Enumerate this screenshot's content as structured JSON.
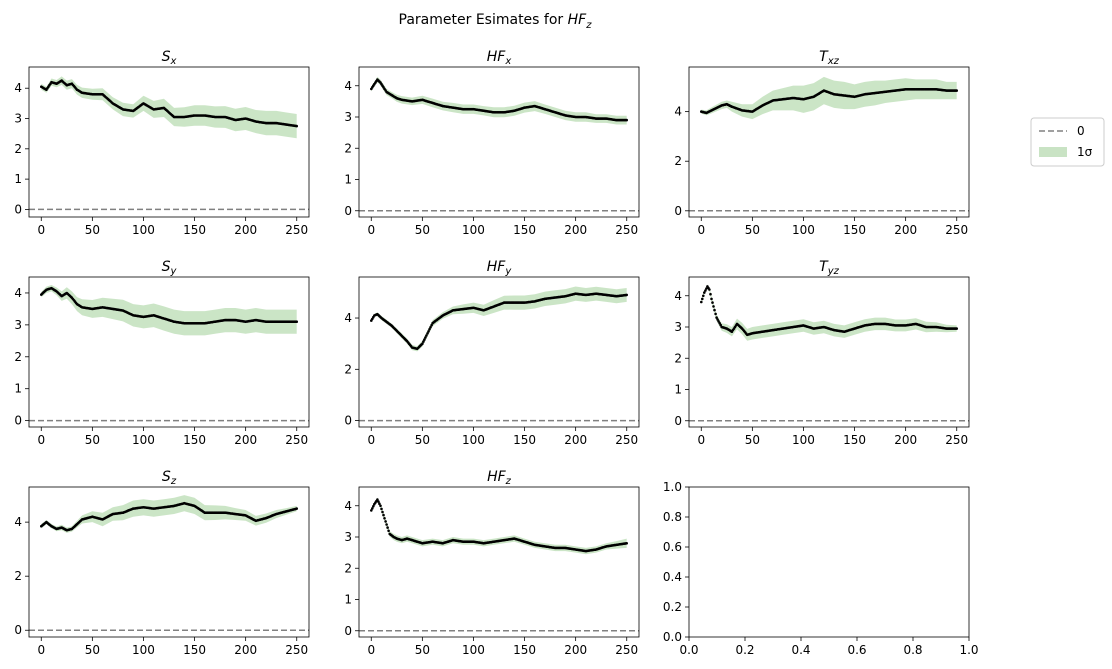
{
  "figure": {
    "title_text": "Parameter Esimates for ",
    "title_math_base": "HF",
    "title_math_sub": "z"
  },
  "legend": {
    "entries": [
      {
        "label": "0",
        "style": "dashed-line",
        "color": "#808080"
      },
      {
        "label": "1σ",
        "style": "band",
        "color": "#c9e3c4"
      }
    ]
  },
  "colors": {
    "estimate": "#000000",
    "band": "#a9d4a0",
    "zero_line": "#808080"
  },
  "chart_data": [
    {
      "type": "line",
      "title_base": "S",
      "title_sub": "x",
      "x": [
        0,
        5,
        10,
        15,
        20,
        25,
        30,
        35,
        40,
        50,
        60,
        70,
        80,
        90,
        100,
        110,
        120,
        130,
        140,
        150,
        160,
        170,
        180,
        190,
        200,
        210,
        220,
        230,
        240,
        250
      ],
      "y": [
        4.05,
        3.95,
        4.2,
        4.15,
        4.25,
        4.1,
        4.15,
        3.95,
        3.85,
        3.8,
        3.8,
        3.5,
        3.3,
        3.25,
        3.5,
        3.3,
        3.35,
        3.05,
        3.05,
        3.1,
        3.1,
        3.05,
        3.05,
        2.95,
        3.0,
        2.9,
        2.85,
        2.85,
        2.8,
        2.75
      ],
      "sigma": [
        0.1,
        0.1,
        0.12,
        0.12,
        0.14,
        0.15,
        0.15,
        0.16,
        0.17,
        0.18,
        0.2,
        0.2,
        0.22,
        0.22,
        0.25,
        0.28,
        0.3,
        0.3,
        0.32,
        0.34,
        0.34,
        0.35,
        0.36,
        0.37,
        0.38,
        0.38,
        0.4,
        0.4,
        0.4,
        0.4
      ],
      "xlim": [
        -12,
        262
      ],
      "ylim": [
        -0.25,
        4.7
      ],
      "xticks": [
        0,
        50,
        100,
        150,
        200,
        250
      ],
      "yticks": [
        0,
        1,
        2,
        3,
        4
      ]
    },
    {
      "type": "line",
      "title_base": "HF",
      "title_sub": "x",
      "x": [
        0,
        3,
        6,
        9,
        12,
        15,
        20,
        25,
        30,
        40,
        50,
        60,
        70,
        80,
        90,
        100,
        110,
        120,
        130,
        140,
        150,
        160,
        170,
        180,
        190,
        200,
        210,
        220,
        230,
        240,
        250
      ],
      "y": [
        3.9,
        4.05,
        4.2,
        4.1,
        3.95,
        3.8,
        3.7,
        3.6,
        3.55,
        3.5,
        3.55,
        3.45,
        3.35,
        3.3,
        3.25,
        3.25,
        3.2,
        3.15,
        3.15,
        3.2,
        3.3,
        3.35,
        3.25,
        3.15,
        3.05,
        3.0,
        3.0,
        2.95,
        2.95,
        2.9,
        2.9
      ],
      "sigma": [
        0.08,
        0.08,
        0.09,
        0.09,
        0.1,
        0.1,
        0.1,
        0.11,
        0.12,
        0.12,
        0.13,
        0.14,
        0.14,
        0.15,
        0.15,
        0.15,
        0.15,
        0.16,
        0.16,
        0.16,
        0.16,
        0.16,
        0.15,
        0.15,
        0.15,
        0.15,
        0.15,
        0.14,
        0.14,
        0.14,
        0.14
      ],
      "xlim": [
        -12,
        262
      ],
      "ylim": [
        -0.2,
        4.6
      ],
      "xticks": [
        0,
        50,
        100,
        150,
        200,
        250
      ],
      "yticks": [
        0,
        1,
        2,
        3,
        4
      ]
    },
    {
      "type": "line",
      "title_base": "T",
      "title_sub": "xz",
      "x": [
        0,
        5,
        10,
        20,
        25,
        30,
        40,
        50,
        60,
        70,
        80,
        90,
        100,
        110,
        120,
        130,
        140,
        150,
        160,
        170,
        180,
        190,
        200,
        210,
        220,
        230,
        240,
        250
      ],
      "y": [
        4.0,
        3.95,
        4.05,
        4.25,
        4.3,
        4.2,
        4.05,
        4.0,
        4.25,
        4.45,
        4.5,
        4.55,
        4.5,
        4.6,
        4.85,
        4.7,
        4.65,
        4.6,
        4.7,
        4.75,
        4.8,
        4.85,
        4.9,
        4.9,
        4.9,
        4.9,
        4.85,
        4.85
      ],
      "sigma": [
        0.08,
        0.1,
        0.12,
        0.15,
        0.15,
        0.2,
        0.25,
        0.3,
        0.35,
        0.4,
        0.45,
        0.5,
        0.55,
        0.55,
        0.55,
        0.55,
        0.55,
        0.5,
        0.5,
        0.5,
        0.45,
        0.45,
        0.45,
        0.4,
        0.4,
        0.4,
        0.35,
        0.35
      ],
      "xlim": [
        -12,
        262
      ],
      "ylim": [
        -0.25,
        5.8
      ],
      "xticks": [
        0,
        50,
        100,
        150,
        200,
        250
      ],
      "yticks": [
        0,
        2,
        4
      ]
    },
    {
      "type": "line",
      "title_base": "S",
      "title_sub": "y",
      "x": [
        0,
        5,
        10,
        15,
        20,
        25,
        30,
        35,
        40,
        50,
        60,
        70,
        80,
        90,
        100,
        110,
        120,
        130,
        140,
        150,
        160,
        170,
        180,
        190,
        200,
        210,
        220,
        230,
        240,
        250
      ],
      "y": [
        3.95,
        4.1,
        4.15,
        4.05,
        3.9,
        4.0,
        3.85,
        3.65,
        3.55,
        3.5,
        3.55,
        3.5,
        3.45,
        3.3,
        3.25,
        3.3,
        3.2,
        3.1,
        3.05,
        3.05,
        3.05,
        3.1,
        3.15,
        3.15,
        3.1,
        3.15,
        3.1,
        3.1,
        3.1,
        3.1
      ],
      "sigma": [
        0.08,
        0.1,
        0.1,
        0.12,
        0.15,
        0.18,
        0.2,
        0.22,
        0.25,
        0.28,
        0.3,
        0.32,
        0.34,
        0.35,
        0.36,
        0.37,
        0.38,
        0.38,
        0.38,
        0.38,
        0.38,
        0.38,
        0.38,
        0.38,
        0.38,
        0.38,
        0.38,
        0.38,
        0.38,
        0.38
      ],
      "xlim": [
        -12,
        262
      ],
      "ylim": [
        -0.2,
        4.5
      ],
      "xticks": [
        0,
        50,
        100,
        150,
        200,
        250
      ],
      "yticks": [
        0,
        1,
        2,
        3,
        4
      ]
    },
    {
      "type": "line",
      "title_base": "HF",
      "title_sub": "y",
      "x": [
        0,
        3,
        6,
        10,
        15,
        20,
        25,
        30,
        35,
        40,
        45,
        50,
        55,
        60,
        70,
        80,
        90,
        100,
        110,
        120,
        130,
        140,
        150,
        160,
        170,
        180,
        190,
        200,
        210,
        220,
        230,
        240,
        250
      ],
      "y": [
        3.9,
        4.1,
        4.15,
        4.0,
        3.85,
        3.7,
        3.5,
        3.3,
        3.1,
        2.85,
        2.8,
        3.0,
        3.4,
        3.8,
        4.1,
        4.3,
        4.35,
        4.4,
        4.3,
        4.45,
        4.6,
        4.6,
        4.6,
        4.65,
        4.75,
        4.8,
        4.85,
        4.95,
        4.9,
        4.95,
        4.9,
        4.85,
        4.9
      ],
      "sigma": [
        0.05,
        0.06,
        0.07,
        0.08,
        0.08,
        0.08,
        0.09,
        0.1,
        0.1,
        0.1,
        0.1,
        0.11,
        0.12,
        0.12,
        0.13,
        0.15,
        0.18,
        0.2,
        0.22,
        0.25,
        0.27,
        0.28,
        0.28,
        0.28,
        0.28,
        0.28,
        0.28,
        0.28,
        0.27,
        0.27,
        0.27,
        0.27,
        0.27
      ],
      "xlim": [
        -12,
        262
      ],
      "ylim": [
        -0.25,
        5.6
      ],
      "xticks": [
        0,
        50,
        100,
        150,
        200,
        250
      ],
      "yticks": [
        0,
        2,
        4
      ]
    },
    {
      "type": "line",
      "title_base": "T",
      "title_sub": "yz",
      "x": [
        0,
        3,
        6,
        8,
        10,
        15,
        20,
        25,
        30,
        35,
        40,
        45,
        50,
        60,
        70,
        80,
        90,
        100,
        110,
        120,
        130,
        140,
        150,
        160,
        170,
        180,
        190,
        200,
        210,
        220,
        230,
        240,
        250
      ],
      "y": [
        3.8,
        4.1,
        4.3,
        4.2,
        3.9,
        3.3,
        3.0,
        2.95,
        2.85,
        3.1,
        2.95,
        2.75,
        2.8,
        2.85,
        2.9,
        2.95,
        3.0,
        3.05,
        2.95,
        3.0,
        2.9,
        2.85,
        2.95,
        3.05,
        3.1,
        3.1,
        3.05,
        3.05,
        3.1,
        3.0,
        3.0,
        2.95,
        2.95
      ],
      "sigma": [
        0.05,
        0.06,
        0.06,
        0.07,
        0.08,
        0.1,
        0.12,
        0.14,
        0.15,
        0.17,
        0.18,
        0.19,
        0.2,
        0.2,
        0.2,
        0.2,
        0.2,
        0.2,
        0.2,
        0.2,
        0.2,
        0.2,
        0.2,
        0.2,
        0.2,
        0.2,
        0.19,
        0.19,
        0.18,
        0.17,
        0.15,
        0.12,
        0.1
      ],
      "xlim": [
        -12,
        262
      ],
      "ylim": [
        -0.2,
        4.6
      ],
      "xticks": [
        0,
        50,
        100,
        150,
        200,
        250
      ],
      "yticks": [
        0,
        1,
        2,
        3,
        4
      ]
    },
    {
      "type": "line",
      "title_base": "S",
      "title_sub": "z",
      "x": [
        0,
        5,
        10,
        15,
        20,
        25,
        30,
        40,
        50,
        60,
        70,
        80,
        90,
        100,
        110,
        120,
        130,
        140,
        150,
        160,
        170,
        180,
        190,
        200,
        210,
        220,
        230,
        240,
        250
      ],
      "y": [
        3.85,
        4.0,
        3.85,
        3.75,
        3.8,
        3.7,
        3.75,
        4.1,
        4.2,
        4.1,
        4.3,
        4.35,
        4.5,
        4.55,
        4.5,
        4.55,
        4.6,
        4.7,
        4.6,
        4.35,
        4.35,
        4.35,
        4.3,
        4.25,
        4.05,
        4.15,
        4.3,
        4.4,
        4.5
      ],
      "sigma": [
        0.08,
        0.08,
        0.08,
        0.09,
        0.1,
        0.1,
        0.1,
        0.15,
        0.2,
        0.25,
        0.25,
        0.28,
        0.3,
        0.3,
        0.3,
        0.3,
        0.3,
        0.3,
        0.3,
        0.28,
        0.27,
        0.25,
        0.22,
        0.2,
        0.18,
        0.17,
        0.15,
        0.12,
        0.1
      ],
      "xlim": [
        -12,
        262
      ],
      "ylim": [
        -0.25,
        5.3
      ],
      "xticks": [
        0,
        50,
        100,
        150,
        200,
        250
      ],
      "yticks": [
        0,
        2,
        4
      ]
    },
    {
      "type": "line",
      "title_base": "HF",
      "title_sub": "z",
      "x": [
        0,
        3,
        6,
        9,
        12,
        15,
        18,
        22,
        25,
        30,
        35,
        40,
        50,
        60,
        70,
        80,
        90,
        100,
        110,
        120,
        130,
        140,
        150,
        160,
        170,
        180,
        190,
        200,
        210,
        220,
        230,
        240,
        250
      ],
      "y": [
        3.85,
        4.05,
        4.2,
        4.0,
        3.7,
        3.4,
        3.1,
        3.0,
        2.95,
        2.9,
        2.95,
        2.9,
        2.8,
        2.85,
        2.8,
        2.9,
        2.85,
        2.85,
        2.8,
        2.85,
        2.9,
        2.95,
        2.85,
        2.75,
        2.7,
        2.65,
        2.65,
        2.6,
        2.55,
        2.6,
        2.7,
        2.75,
        2.8
      ],
      "sigma": [
        0.05,
        0.05,
        0.06,
        0.07,
        0.08,
        0.08,
        0.09,
        0.1,
        0.1,
        0.1,
        0.1,
        0.1,
        0.1,
        0.1,
        0.1,
        0.1,
        0.1,
        0.1,
        0.1,
        0.1,
        0.1,
        0.1,
        0.1,
        0.1,
        0.1,
        0.1,
        0.1,
        0.1,
        0.1,
        0.1,
        0.1,
        0.12,
        0.15
      ],
      "xlim": [
        -12,
        262
      ],
      "ylim": [
        -0.2,
        4.6
      ],
      "xticks": [
        0,
        50,
        100,
        150,
        200,
        250
      ],
      "yticks": [
        0,
        1,
        2,
        3,
        4
      ]
    },
    {
      "type": "line",
      "title_base": "",
      "title_sub": "",
      "empty": true,
      "x": [],
      "y": [],
      "sigma": [],
      "xlim": [
        0,
        1
      ],
      "ylim": [
        0,
        1
      ],
      "xticks": [
        0.0,
        0.2,
        0.4,
        0.6,
        0.8,
        1.0
      ],
      "yticks": [
        0.0,
        0.2,
        0.4,
        0.6,
        0.8,
        1.0
      ],
      "tick_format": "1dp"
    }
  ]
}
